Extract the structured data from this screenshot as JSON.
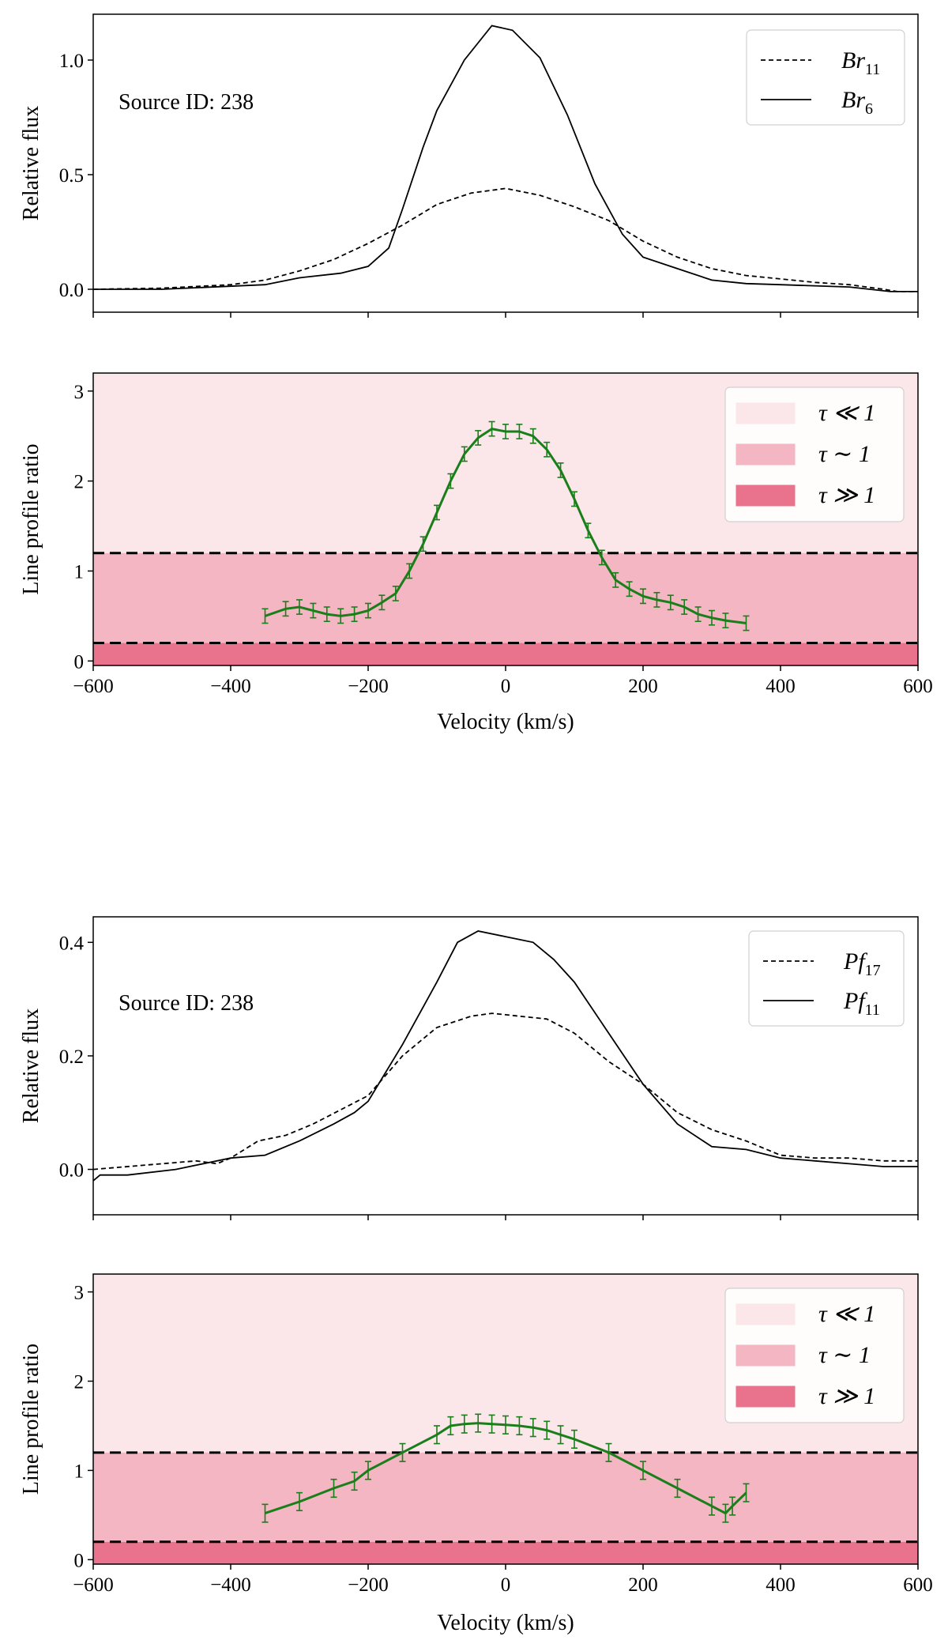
{
  "chart_data": [
    {
      "type": "line",
      "id": "flux1",
      "ylabel": "Relative flux",
      "xlabel": "",
      "xlim": [
        -600,
        600
      ],
      "ylim": [
        -0.1,
        1.2
      ],
      "xticks": [
        -600,
        -400,
        -200,
        0,
        200,
        400,
        600
      ],
      "xticklabels": [
        "",
        "",
        "",
        "",
        "",
        "",
        ""
      ],
      "yticks": [
        0.0,
        0.5,
        1.0
      ],
      "yticklabels": [
        "0.0",
        "0.5",
        "1.0"
      ],
      "annotation": "Source ID: 238",
      "legend": [
        {
          "base": "Br",
          "sub": "11",
          "style": "dashed"
        },
        {
          "base": "Br",
          "sub": "6",
          "style": "solid"
        }
      ],
      "series": [
        {
          "name": "Br11",
          "style": "dashed",
          "x": [
            -600,
            -500,
            -400,
            -350,
            -300,
            -250,
            -200,
            -150,
            -100,
            -50,
            0,
            50,
            100,
            150,
            200,
            250,
            300,
            350,
            400,
            450,
            500,
            550,
            570,
            600
          ],
          "y": [
            0.0,
            0.005,
            0.02,
            0.04,
            0.08,
            0.13,
            0.2,
            0.28,
            0.37,
            0.42,
            0.44,
            0.41,
            0.36,
            0.3,
            0.21,
            0.14,
            0.09,
            0.06,
            0.045,
            0.03,
            0.02,
            0.0,
            -0.01,
            -0.01
          ]
        },
        {
          "name": "Br6",
          "style": "solid",
          "x": [
            -600,
            -500,
            -350,
            -300,
            -240,
            -200,
            -170,
            -150,
            -120,
            -100,
            -60,
            -20,
            10,
            50,
            90,
            130,
            170,
            200,
            250,
            300,
            350,
            400,
            500,
            560,
            600
          ],
          "y": [
            0.0,
            0.0,
            0.02,
            0.05,
            0.07,
            0.1,
            0.18,
            0.35,
            0.62,
            0.78,
            1.0,
            1.15,
            1.13,
            1.01,
            0.76,
            0.46,
            0.24,
            0.14,
            0.09,
            0.04,
            0.025,
            0.02,
            0.01,
            -0.01,
            -0.01
          ]
        }
      ]
    },
    {
      "type": "line",
      "id": "ratio1",
      "ylabel": "Line profile ratio",
      "xlabel": "Velocity (km/s)",
      "xlim": [
        -600,
        600
      ],
      "ylim": [
        -0.05,
        3.2
      ],
      "xticks": [
        -600,
        -400,
        -200,
        0,
        200,
        400,
        600
      ],
      "xticklabels": [
        "−600",
        "−400",
        "−200",
        "0",
        "200",
        "400",
        "600"
      ],
      "yticks": [
        0,
        1,
        2,
        3
      ],
      "yticklabels": [
        "0",
        "1",
        "2",
        "3"
      ],
      "bands": [
        {
          "from": 1.2,
          "to": 3.2,
          "color": "#fbe6ea",
          "label": "τ ≪ 1"
        },
        {
          "from": 0.2,
          "to": 1.2,
          "color": "#f3b6c2",
          "label": "τ ∼ 1"
        },
        {
          "from": -0.05,
          "to": 0.2,
          "color": "#e9738c",
          "label": "τ ≫ 1"
        }
      ],
      "hlines": [
        1.2,
        0.2
      ],
      "series": [
        {
          "name": "ratio",
          "color": "#1a7f1a",
          "x": [
            -350,
            -320,
            -300,
            -280,
            -260,
            -240,
            -220,
            -200,
            -180,
            -160,
            -140,
            -120,
            -100,
            -80,
            -60,
            -40,
            -20,
            0,
            20,
            40,
            60,
            80,
            100,
            120,
            140,
            160,
            180,
            200,
            220,
            240,
            260,
            280,
            300,
            320,
            350
          ],
          "y": [
            0.5,
            0.58,
            0.6,
            0.56,
            0.52,
            0.5,
            0.52,
            0.56,
            0.65,
            0.75,
            1.0,
            1.3,
            1.65,
            2.0,
            2.3,
            2.48,
            2.58,
            2.55,
            2.55,
            2.5,
            2.35,
            2.12,
            1.8,
            1.45,
            1.15,
            0.9,
            0.8,
            0.72,
            0.68,
            0.65,
            0.6,
            0.52,
            0.48,
            0.45,
            0.42
          ],
          "err": 0.08
        }
      ]
    },
    {
      "type": "line",
      "id": "flux2",
      "ylabel": "Relative flux",
      "xlabel": "",
      "xlim": [
        -600,
        600
      ],
      "ylim": [
        -0.08,
        0.445
      ],
      "xticks": [
        -600,
        -400,
        -200,
        0,
        200,
        400,
        600
      ],
      "xticklabels": [
        "",
        "",
        "",
        "",
        "",
        "",
        ""
      ],
      "yticks": [
        0.0,
        0.2,
        0.4
      ],
      "yticklabels": [
        "0.0",
        "0.2",
        "0.4"
      ],
      "annotation": "Source ID: 238",
      "legend": [
        {
          "base": "Pf",
          "sub": "17",
          "style": "dashed"
        },
        {
          "base": "Pf",
          "sub": "11",
          "style": "solid"
        }
      ],
      "series": [
        {
          "name": "Pf17",
          "style": "dashed",
          "x": [
            -600,
            -500,
            -450,
            -420,
            -400,
            -360,
            -320,
            -280,
            -200,
            -150,
            -100,
            -50,
            -20,
            20,
            60,
            100,
            150,
            200,
            250,
            300,
            350,
            400,
            450,
            500,
            550,
            600
          ],
          "y": [
            0.0,
            0.01,
            0.015,
            0.01,
            0.02,
            0.05,
            0.06,
            0.08,
            0.13,
            0.2,
            0.25,
            0.27,
            0.275,
            0.27,
            0.265,
            0.24,
            0.19,
            0.15,
            0.1,
            0.07,
            0.05,
            0.025,
            0.02,
            0.02,
            0.015,
            0.015
          ]
        },
        {
          "name": "Pf11",
          "style": "solid",
          "x": [
            -600,
            -590,
            -550,
            -480,
            -400,
            -350,
            -300,
            -250,
            -220,
            -200,
            -150,
            -100,
            -70,
            -40,
            0,
            40,
            70,
            100,
            150,
            200,
            250,
            300,
            350,
            400,
            450,
            500,
            550,
            600
          ],
          "y": [
            -0.02,
            -0.01,
            -0.01,
            0.0,
            0.02,
            0.025,
            0.05,
            0.08,
            0.1,
            0.12,
            0.22,
            0.33,
            0.4,
            0.42,
            0.41,
            0.4,
            0.37,
            0.33,
            0.24,
            0.15,
            0.08,
            0.04,
            0.035,
            0.02,
            0.015,
            0.01,
            0.005,
            0.005
          ]
        }
      ]
    },
    {
      "type": "line",
      "id": "ratio2",
      "ylabel": "Line profile ratio",
      "xlabel": "Velocity (km/s)",
      "xlim": [
        -600,
        600
      ],
      "ylim": [
        -0.05,
        3.2
      ],
      "xticks": [
        -600,
        -400,
        -200,
        0,
        200,
        400,
        600
      ],
      "xticklabels": [
        "−600",
        "−400",
        "−200",
        "0",
        "200",
        "400",
        "600"
      ],
      "yticks": [
        0,
        1,
        2,
        3
      ],
      "yticklabels": [
        "0",
        "1",
        "2",
        "3"
      ],
      "bands": [
        {
          "from": 1.2,
          "to": 3.2,
          "color": "#fbe6ea",
          "label": "τ ≪ 1"
        },
        {
          "from": 0.2,
          "to": 1.2,
          "color": "#f3b6c2",
          "label": "τ ∼ 1"
        },
        {
          "from": -0.05,
          "to": 0.2,
          "color": "#e9738c",
          "label": "τ ≫ 1"
        }
      ],
      "hlines": [
        1.2,
        0.2
      ],
      "series": [
        {
          "name": "ratio",
          "color": "#1a7f1a",
          "x": [
            -350,
            -300,
            -250,
            -220,
            -200,
            -150,
            -100,
            -80,
            -60,
            -40,
            -20,
            0,
            20,
            40,
            60,
            80,
            100,
            150,
            200,
            250,
            300,
            320,
            330,
            350
          ],
          "y": [
            0.52,
            0.65,
            0.8,
            0.88,
            1.0,
            1.2,
            1.4,
            1.5,
            1.52,
            1.53,
            1.52,
            1.51,
            1.5,
            1.48,
            1.45,
            1.4,
            1.35,
            1.2,
            1.0,
            0.8,
            0.6,
            0.52,
            0.6,
            0.75
          ],
          "err": 0.1
        }
      ]
    }
  ]
}
